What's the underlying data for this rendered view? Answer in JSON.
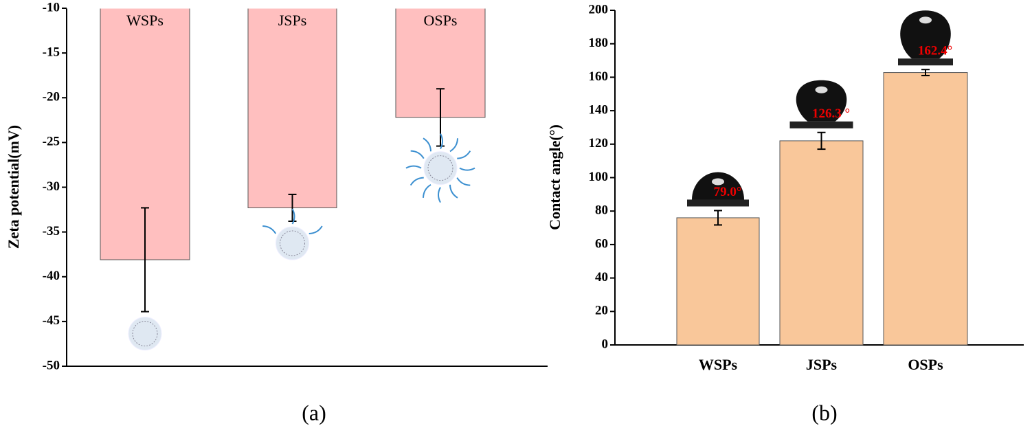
{
  "chart_data": [
    {
      "type": "bar",
      "caption": "(a)",
      "y_label": "Zeta potential(mV)",
      "categories": [
        "WSPs",
        "JSPs",
        "OSPs"
      ],
      "values": [
        -38.1,
        -32.3,
        -22.2
      ],
      "errors": [
        5.8,
        1.5,
        3.2
      ],
      "color": "#ffbfbf",
      "ylim": [
        -50,
        -10
      ],
      "yticks": [
        -50,
        -45,
        -40,
        -35,
        -30,
        -25,
        -20,
        -15,
        -10
      ]
    },
    {
      "type": "bar",
      "caption": "(b)",
      "y_label": "Contact angle(°)",
      "categories": [
        "WSPs",
        "JSPs",
        "OSPs"
      ],
      "values": [
        76,
        122,
        162.8
      ],
      "errors": [
        4.3,
        5,
        1.8
      ],
      "color": "#f9c79a",
      "ylim": [
        0,
        200
      ],
      "yticks": [
        0,
        20,
        40,
        60,
        80,
        100,
        120,
        140,
        160,
        180,
        200
      ],
      "annotations": [
        "79.0°",
        "126.3 °",
        "162.4°"
      ]
    }
  ]
}
